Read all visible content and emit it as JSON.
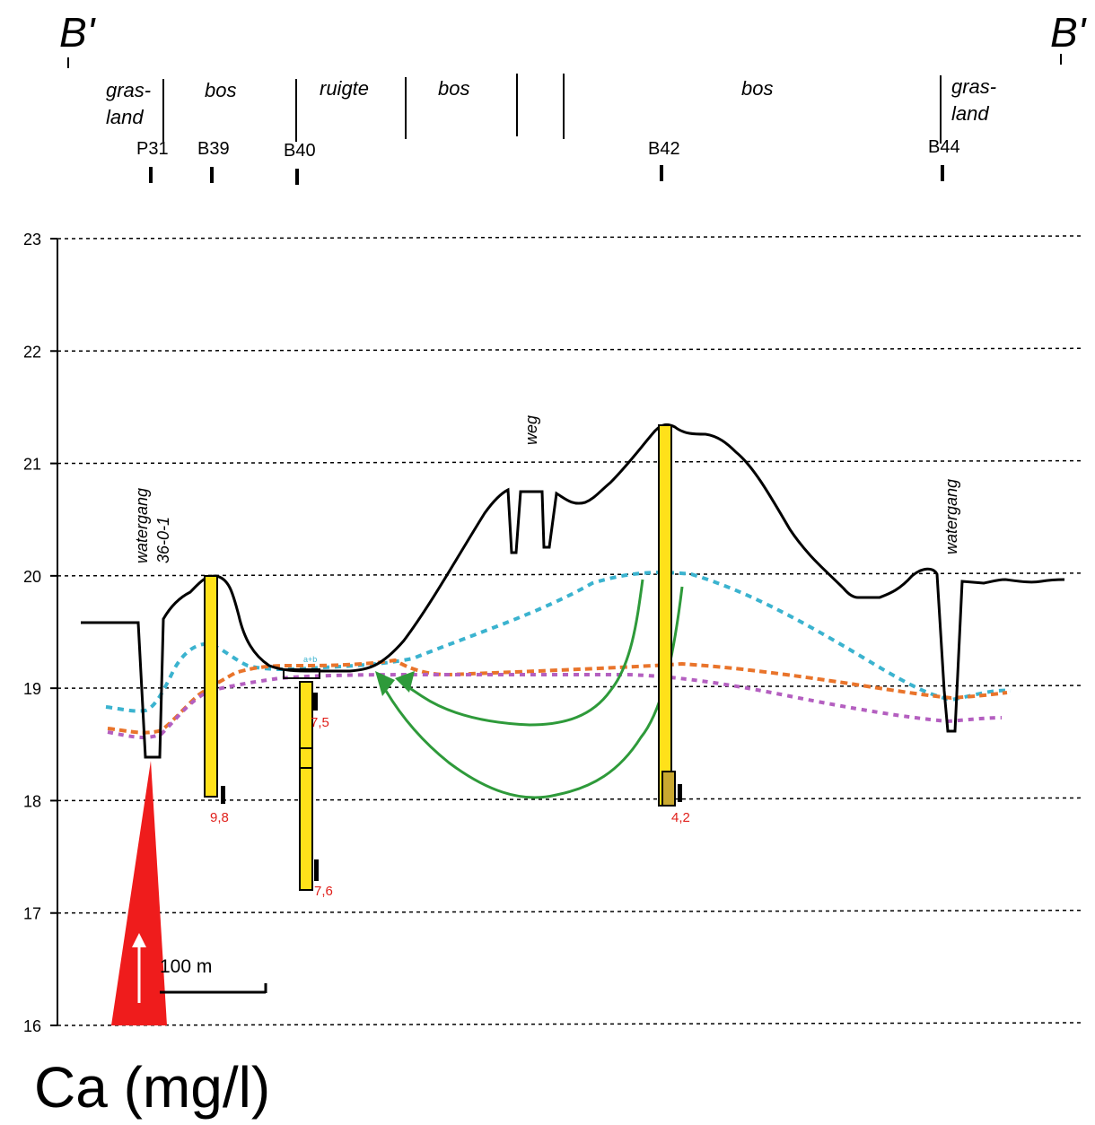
{
  "section": {
    "left_label": "B'",
    "right_label": "B'"
  },
  "land_use": [
    "gras-",
    "land",
    "bos",
    "ruigte",
    "bos",
    "bos",
    "gras-",
    "land"
  ],
  "wells": [
    "P31",
    "B39",
    "B40",
    "B42",
    "B44"
  ],
  "annotations": {
    "weg": "weg",
    "watergang_left_1": "watergang",
    "watergang_left_2": "36-0-1",
    "watergang_right": "watergang",
    "ab": "a+b"
  },
  "scale_bar": "100 m",
  "chart_data": {
    "type": "line",
    "yticks": [
      "16",
      "17",
      "18",
      "19",
      "20",
      "21",
      "22",
      "23"
    ],
    "ylim": [
      16,
      23
    ],
    "grid": true,
    "ca_values": [
      "9,8",
      "7,5",
      "7,6",
      "4,2"
    ],
    "caption": "Ca (mg/l)"
  },
  "colors": {
    "surface": "#000000",
    "screen": "#ffe11a",
    "head_blue": "#3bb3cf",
    "head_orange": "#e9742b",
    "head_purple": "#b45fc0",
    "flow": "#2e9a3a",
    "label_red": "#e0201b",
    "ditch_marker": "#ef1c1c"
  }
}
